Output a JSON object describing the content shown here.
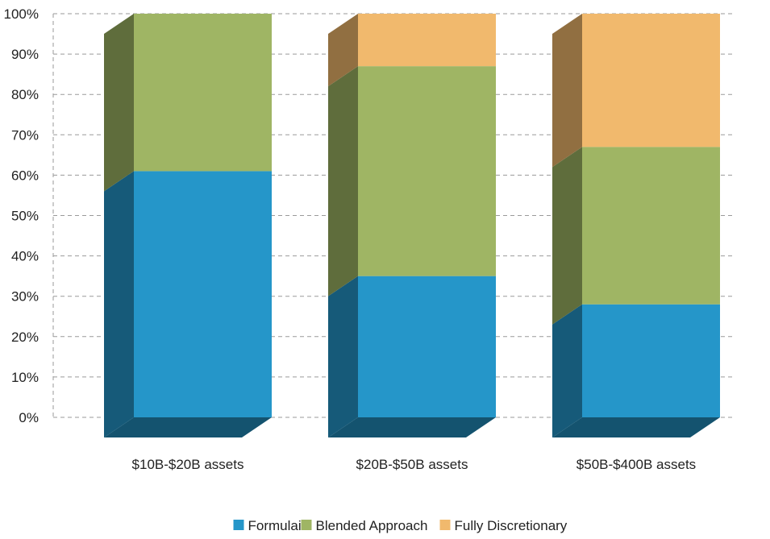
{
  "chart_data": {
    "type": "bar",
    "stacked": true,
    "three_d": true,
    "categories": [
      "$10B-$20B assets",
      "$20B-$50B assets",
      "$50B-$400B assets"
    ],
    "series": [
      {
        "name": "Formulaic",
        "values": [
          61,
          35,
          28
        ],
        "color": "#2596C9"
      },
      {
        "name": "Blended Approach",
        "values": [
          39,
          52,
          39
        ],
        "color": "#9FB564"
      },
      {
        "name": "Fully Discretionary",
        "values": [
          0,
          13,
          33
        ],
        "color": "#F1B96D"
      }
    ],
    "yticks": [
      "0%",
      "10%",
      "20%",
      "30%",
      "40%",
      "50%",
      "60%",
      "70%",
      "80%",
      "90%",
      "100%"
    ],
    "ylim": [
      0,
      100
    ],
    "grid": true,
    "legend_position": "bottom"
  }
}
